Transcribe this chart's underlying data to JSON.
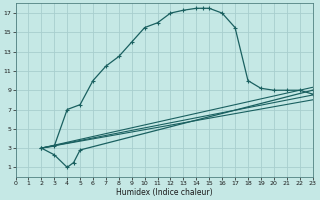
{
  "xlabel": "Humidex (Indice chaleur)",
  "bg_color": "#c5e8e5",
  "grid_color": "#a8cece",
  "line_color": "#1a6060",
  "xlim": [
    0,
    23
  ],
  "ylim": [
    0,
    18
  ],
  "xticks": [
    0,
    1,
    2,
    3,
    4,
    5,
    6,
    7,
    8,
    9,
    10,
    11,
    12,
    13,
    14,
    15,
    16,
    17,
    18,
    19,
    20,
    21,
    22,
    23
  ],
  "yticks": [
    1,
    3,
    5,
    7,
    9,
    11,
    13,
    15,
    17
  ],
  "curve1_x": [
    2,
    3,
    4,
    5,
    6,
    7,
    8,
    9,
    10,
    11,
    12,
    13,
    14,
    14.5,
    15,
    16,
    17,
    18,
    19,
    20,
    21,
    22,
    23
  ],
  "curve1_y": [
    3,
    3.2,
    7,
    7.5,
    10,
    11.5,
    12.5,
    14,
    15.5,
    16,
    17,
    17.3,
    17.5,
    17.5,
    17.5,
    17,
    15.5,
    10,
    9.2,
    9,
    9,
    9,
    8.6
  ],
  "curve2_x": [
    2,
    3,
    4,
    4.5,
    5,
    23
  ],
  "curve2_y": [
    3,
    2.3,
    1,
    1.5,
    2.8,
    9.0
  ],
  "line1_x": [
    2,
    23
  ],
  "line1_y": [
    3.0,
    9.3
  ],
  "line2_x": [
    2,
    23
  ],
  "line2_y": [
    3.0,
    8.5
  ],
  "line3_x": [
    2,
    23
  ],
  "line3_y": [
    3.0,
    8.0
  ]
}
